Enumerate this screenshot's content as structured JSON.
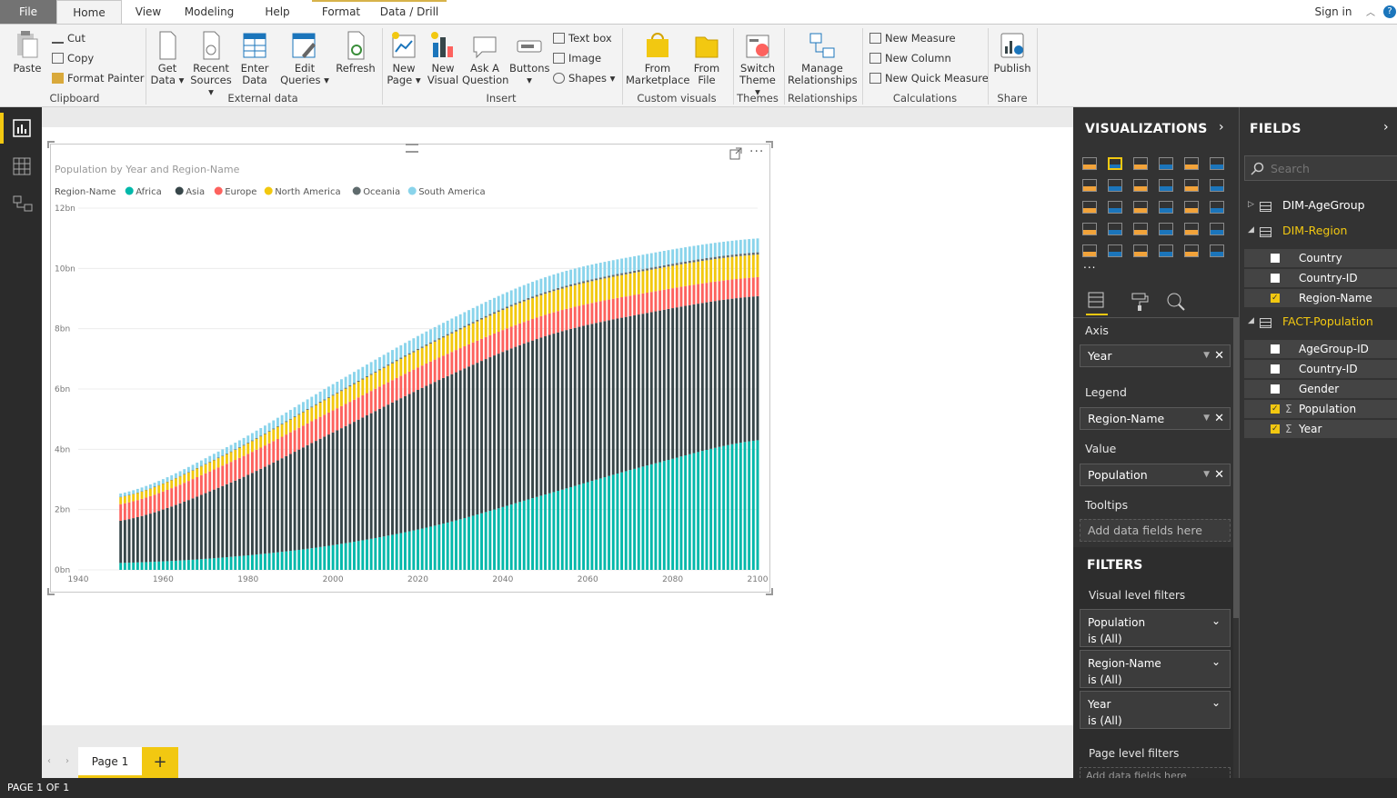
{
  "tabs": {
    "file": "File",
    "home": "Home",
    "view": "View",
    "modeling": "Modeling",
    "help": "Help",
    "format": "Format",
    "data_drill": "Data / Drill",
    "sign_in": "Sign in"
  },
  "ribbon": {
    "paste": "Paste",
    "cut": "Cut",
    "copy": "Copy",
    "format_painter": "Format Painter",
    "clipboard": "Clipboard",
    "get_data_1": "Get",
    "get_data_2": "Data",
    "recent_1": "Recent",
    "recent_2": "Sources",
    "enter_1": "Enter",
    "enter_2": "Data",
    "edit_1": "Edit",
    "edit_2": "Queries",
    "refresh": "Refresh",
    "external_data": "External data",
    "new_page_1": "New",
    "new_page_2": "Page",
    "new_visual_1": "New",
    "new_visual_2": "Visual",
    "ask_1": "Ask A",
    "ask_2": "Question",
    "buttons": "Buttons",
    "text_box": "Text box",
    "image": "Image",
    "shapes": "Shapes",
    "insert": "Insert",
    "from_mkt_1": "From",
    "from_mkt_2": "Marketplace",
    "from_file_1": "From",
    "from_file_2": "File",
    "custom_visuals": "Custom visuals",
    "switch_1": "Switch",
    "switch_2": "Theme",
    "themes": "Themes",
    "manage_1": "Manage",
    "manage_2": "Relationships",
    "relationships": "Relationships",
    "new_measure": "New Measure",
    "new_column": "New Column",
    "new_quick_measure": "New Quick Measure",
    "calculations": "Calculations",
    "publish": "Publish",
    "share": "Share"
  },
  "visualizations": {
    "title": "VISUALIZATIONS",
    "more": "...",
    "axis_label": "Axis",
    "axis_value": "Year",
    "legend_label": "Legend",
    "legend_value": "Region-Name",
    "value_label": "Value",
    "value_value": "Population",
    "tooltips_label": "Tooltips",
    "tooltips_placeholder": "Add data fields here"
  },
  "filters": {
    "title": "FILTERS",
    "visual_level": "Visual level filters",
    "items": [
      {
        "name": "Population",
        "state": "is (All)"
      },
      {
        "name": "Region-Name",
        "state": "is (All)"
      },
      {
        "name": "Year",
        "state": "is (All)"
      }
    ],
    "page_level": "Page level filters",
    "page_placeholder": "Add data fields here"
  },
  "fields": {
    "title": "FIELDS",
    "search_placeholder": "Search",
    "tables": [
      {
        "name": "DIM-AgeGroup",
        "expanded": false,
        "fields": []
      },
      {
        "name": "DIM-Region",
        "expanded": true,
        "fields": [
          {
            "name": "Country",
            "checked": false,
            "sigma": false
          },
          {
            "name": "Country-ID",
            "checked": false,
            "sigma": false
          },
          {
            "name": "Region-Name",
            "checked": true,
            "sigma": false
          }
        ]
      },
      {
        "name": "FACT-Population",
        "expanded": true,
        "fields": [
          {
            "name": "AgeGroup-ID",
            "checked": false,
            "sigma": false
          },
          {
            "name": "Country-ID",
            "checked": false,
            "sigma": false
          },
          {
            "name": "Gender",
            "checked": false,
            "sigma": false
          },
          {
            "name": "Population",
            "checked": true,
            "sigma": true
          },
          {
            "name": "Year",
            "checked": true,
            "sigma": true
          }
        ]
      }
    ]
  },
  "page_tab": "Page 1",
  "status": "PAGE 1 OF 1",
  "chart_data": {
    "type": "bar",
    "stacked": true,
    "title": "Population by Year and Region-Name",
    "legend_title": "Region-Name",
    "legend_position": "top-left",
    "x_start": 1950,
    "x_end": 2100,
    "x_step": 1,
    "xlim": [
      1940,
      2100
    ],
    "x_ticks": [
      "1940",
      "1960",
      "1980",
      "2000",
      "2020",
      "2040",
      "2060",
      "2080",
      "2100"
    ],
    "ylim": [
      0,
      12
    ],
    "y_ticks": [
      "0bn",
      "2bn",
      "4bn",
      "6bn",
      "8bn",
      "10bn",
      "12bn"
    ],
    "grid": true,
    "anchor_years": [
      1950,
      1975,
      2000,
      2025,
      2050,
      2075,
      2100
    ],
    "series": [
      {
        "name": "Africa",
        "color": "#01b8aa",
        "values": [
          0.23,
          0.42,
          0.82,
          1.5,
          2.5,
          3.5,
          4.3
        ]
      },
      {
        "name": "Asia",
        "color": "#374649",
        "values": [
          1.4,
          2.42,
          3.74,
          4.8,
          5.25,
          5.05,
          4.78
        ]
      },
      {
        "name": "Europe",
        "color": "#fd625e",
        "values": [
          0.55,
          0.68,
          0.73,
          0.74,
          0.71,
          0.67,
          0.63
        ]
      },
      {
        "name": "North America",
        "color": "#f2c80f",
        "values": [
          0.23,
          0.32,
          0.49,
          0.6,
          0.7,
          0.74,
          0.75
        ]
      },
      {
        "name": "Oceania",
        "color": "#5f6b6d",
        "values": [
          0.013,
          0.021,
          0.031,
          0.045,
          0.057,
          0.066,
          0.075
        ]
      },
      {
        "name": "South America",
        "color": "#8ad4eb",
        "values": [
          0.11,
          0.21,
          0.35,
          0.44,
          0.49,
          0.48,
          0.46
        ]
      }
    ]
  }
}
